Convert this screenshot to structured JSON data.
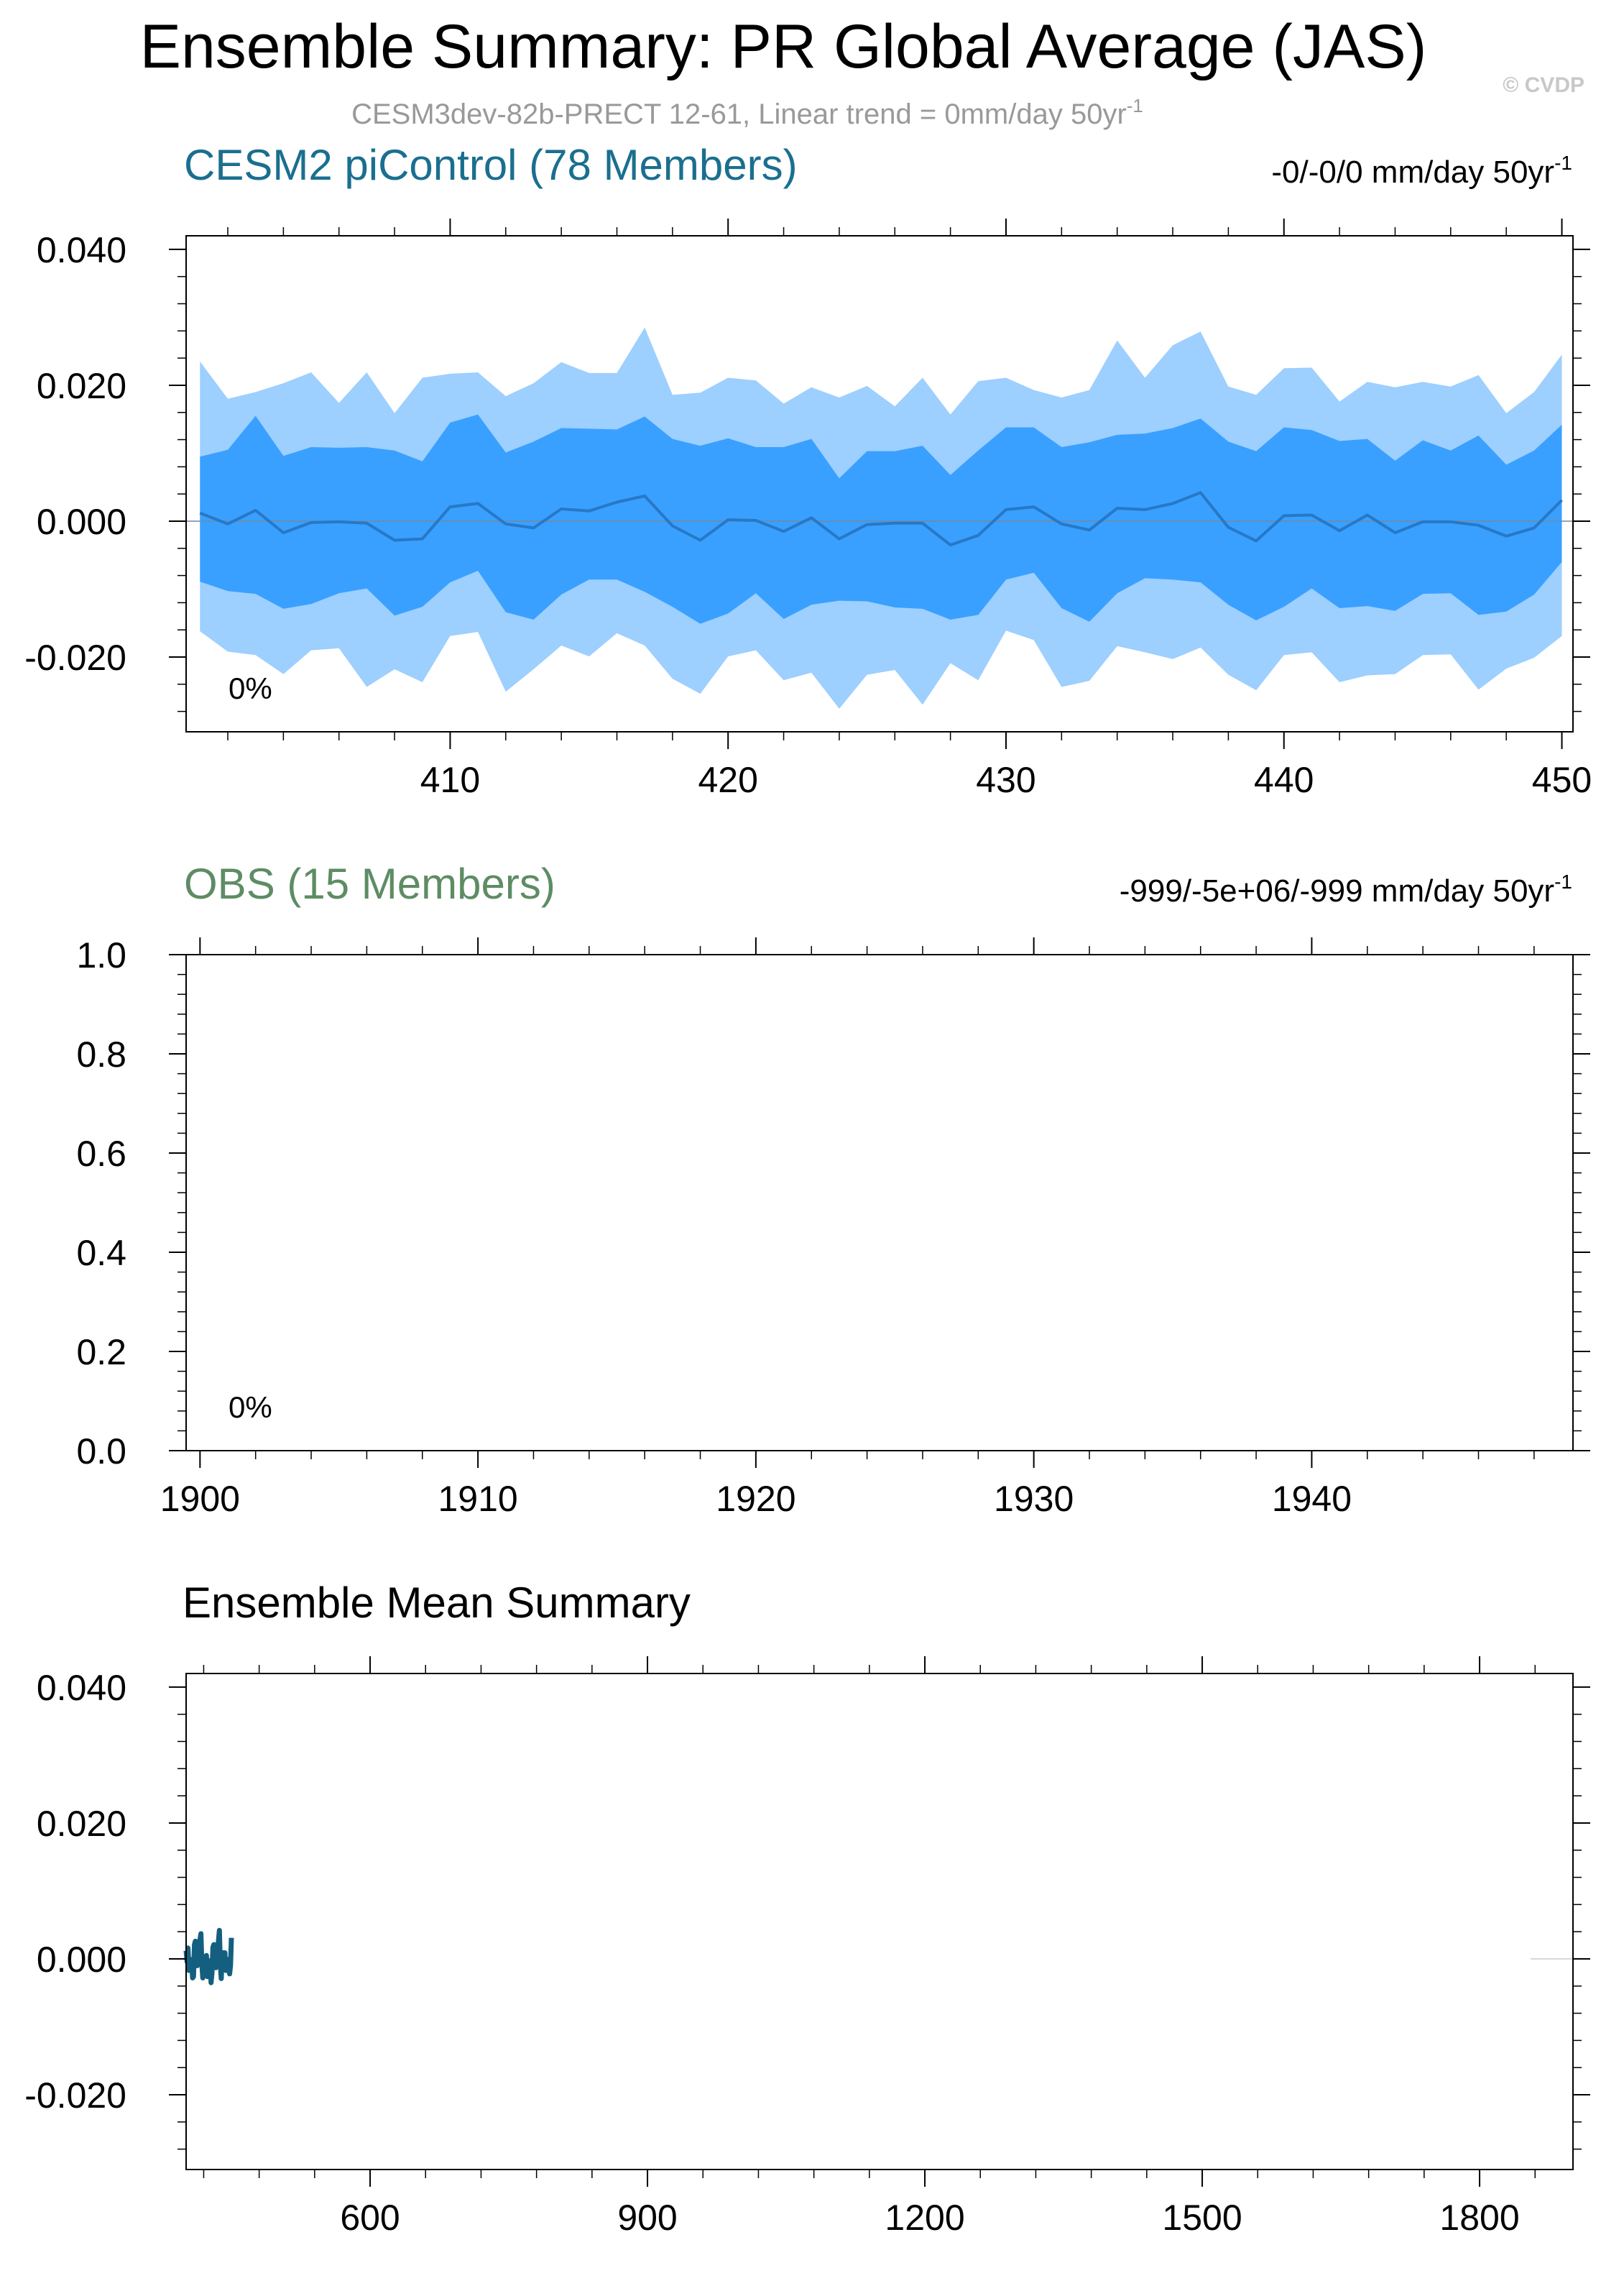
{
  "title": "Ensemble Summary: PR Global Average (JAS)",
  "copyright": "© CVDP",
  "subtitle": "CESM3dev-82b-PRECT 12-61, Linear trend = 0mm/day 50yr",
  "subtitle_sup": "-1",
  "colors": {
    "cesm_title": "#1a6f8f",
    "obs_title": "#5e8c64",
    "band_outer": "#9dcfff",
    "band_inner": "#39a0ff",
    "mean_line": "#2778c6",
    "summary_line": "#145f80",
    "axis": "#000000",
    "subtitle": "#999999"
  },
  "chart_data": [
    {
      "type": "area",
      "panel_title": "CESM2 piControl (78 Members)",
      "trend_label": "-0/-0/0 mm/day 50yr",
      "trend_sup": "-1",
      "percent_label": "0%",
      "xlim": [
        400.5,
        450.4
      ],
      "ylim": [
        -0.031,
        0.042
      ],
      "x_ticks": [
        410,
        420,
        430,
        440,
        450
      ],
      "x_tick_labels": [
        "410",
        "420",
        "430",
        "440",
        "450"
      ],
      "y_ticks": [
        0.04,
        0.02,
        0.0,
        -0.02
      ],
      "y_tick_labels": [
        "0.040",
        "0.020",
        "0.000",
        "-0.020"
      ],
      "grid": false,
      "x": [
        401,
        402,
        403,
        404,
        405,
        406,
        407,
        408,
        409,
        410,
        411,
        412,
        413,
        414,
        415,
        416,
        417,
        418,
        419,
        420,
        421,
        422,
        423,
        424,
        425,
        426,
        427,
        428,
        429,
        430,
        431,
        432,
        433,
        434,
        435,
        436,
        437,
        438,
        439,
        440,
        441,
        442,
        443,
        444,
        445,
        446,
        447,
        448,
        449,
        450
      ],
      "series": [
        {
          "role": "outer_upper",
          "values": [
            0.0235,
            0.018,
            0.019,
            0.0203,
            0.0219,
            0.0174,
            0.0219,
            0.0159,
            0.0211,
            0.0217,
            0.0219,
            0.0184,
            0.0203,
            0.0234,
            0.0218,
            0.0218,
            0.0285,
            0.0186,
            0.0189,
            0.0211,
            0.0207,
            0.0173,
            0.0197,
            0.0182,
            0.0199,
            0.0169,
            0.0211,
            0.0157,
            0.0206,
            0.0211,
            0.0193,
            0.0182,
            0.0193,
            0.0266,
            0.0211,
            0.0259,
            0.0279,
            0.0198,
            0.0186,
            0.0225,
            0.0226,
            0.0176,
            0.0205,
            0.0197,
            0.0205,
            0.0198,
            0.0215,
            0.0159,
            0.019,
            0.0245
          ]
        },
        {
          "role": "inner_upper",
          "values": [
            0.0095,
            0.0105,
            0.0155,
            0.0096,
            0.0109,
            0.0108,
            0.0109,
            0.0104,
            0.0088,
            0.0145,
            0.0157,
            0.0101,
            0.0117,
            0.0137,
            0.0136,
            0.0135,
            0.0154,
            0.0121,
            0.0111,
            0.0122,
            0.0109,
            0.0109,
            0.0121,
            0.0063,
            0.0103,
            0.0103,
            0.0111,
            0.0068,
            0.0104,
            0.0138,
            0.0138,
            0.0109,
            0.0116,
            0.0127,
            0.0129,
            0.0137,
            0.0151,
            0.0117,
            0.0103,
            0.0138,
            0.0134,
            0.0118,
            0.0121,
            0.0089,
            0.0119,
            0.0104,
            0.0126,
            0.0083,
            0.0104,
            0.0142
          ]
        },
        {
          "role": "mean",
          "values": [
            0.0012,
            -0.0004,
            0.0016,
            -0.0017,
            -0.0002,
            -0.0001,
            -0.0003,
            -0.0028,
            -0.0026,
            0.0021,
            0.0026,
            -0.0004,
            -0.001,
            0.0018,
            0.0015,
            0.0028,
            0.0037,
            -0.0007,
            -0.0028,
            0.0002,
            0.0001,
            -0.0015,
            0.0005,
            -0.0026,
            -0.0005,
            -0.0003,
            -0.0003,
            -0.0035,
            -0.0021,
            0.0017,
            0.0021,
            -0.0004,
            -0.0013,
            0.0019,
            0.0017,
            0.0026,
            0.0042,
            -0.0009,
            -0.0029,
            0.0008,
            0.0009,
            -0.0014,
            0.0009,
            -0.0017,
            -0.0001,
            -0.0001,
            -0.0006,
            -0.0022,
            -0.001,
            0.0031
          ]
        },
        {
          "role": "inner_lower",
          "values": [
            -0.0089,
            -0.0103,
            -0.0107,
            -0.0129,
            -0.0122,
            -0.0106,
            -0.0099,
            -0.0139,
            -0.0126,
            -0.009,
            -0.0073,
            -0.0134,
            -0.0145,
            -0.0108,
            -0.0086,
            -0.0086,
            -0.0104,
            -0.0126,
            -0.0151,
            -0.0136,
            -0.0106,
            -0.0144,
            -0.0123,
            -0.0117,
            -0.0118,
            -0.0127,
            -0.0129,
            -0.0145,
            -0.0138,
            -0.0086,
            -0.0076,
            -0.0128,
            -0.0148,
            -0.0106,
            -0.0084,
            -0.0086,
            -0.009,
            -0.0123,
            -0.0146,
            -0.0126,
            -0.0099,
            -0.0128,
            -0.0125,
            -0.0132,
            -0.0107,
            -0.0106,
            -0.0138,
            -0.0133,
            -0.0108,
            -0.006
          ]
        },
        {
          "role": "outer_lower",
          "values": [
            -0.0162,
            -0.0192,
            -0.0197,
            -0.0225,
            -0.019,
            -0.0187,
            -0.0244,
            -0.0218,
            -0.0237,
            -0.0169,
            -0.0163,
            -0.0251,
            -0.0218,
            -0.0183,
            -0.0199,
            -0.0165,
            -0.0183,
            -0.0232,
            -0.0254,
            -0.0199,
            -0.019,
            -0.0234,
            -0.0223,
            -0.0276,
            -0.0226,
            -0.0219,
            -0.027,
            -0.0209,
            -0.0234,
            -0.0161,
            -0.0175,
            -0.0244,
            -0.0235,
            -0.0184,
            -0.0193,
            -0.0203,
            -0.0186,
            -0.0226,
            -0.0249,
            -0.0197,
            -0.0193,
            -0.0237,
            -0.0227,
            -0.0225,
            -0.0197,
            -0.0196,
            -0.0248,
            -0.0217,
            -0.0201,
            -0.0169
          ]
        }
      ]
    },
    {
      "type": "line",
      "panel_title": "OBS (15 Members)",
      "trend_label": "-999/-5e+06/-999 mm/day 50yr",
      "trend_sup": "-1",
      "percent_label": "0%",
      "xlim": [
        1899.5,
        1949.4
      ],
      "ylim": [
        0.0,
        1.0
      ],
      "x_ticks": [
        1900,
        1910,
        1920,
        1930,
        1940
      ],
      "x_tick_labels": [
        "1900",
        "1910",
        "1920",
        "1930",
        "1940"
      ],
      "y_ticks": [
        1.0,
        0.8,
        0.6,
        0.4,
        0.2,
        0.0
      ],
      "y_tick_labels": [
        "1.0",
        "0.8",
        "0.6",
        "0.4",
        "0.2",
        "0.0"
      ],
      "grid": false,
      "series": []
    },
    {
      "type": "line",
      "panel_title": "Ensemble Mean Summary",
      "xlim": [
        401,
        1901
      ],
      "ylim": [
        -0.031,
        0.042
      ],
      "x_ticks": [
        600,
        900,
        1200,
        1500,
        1800
      ],
      "x_tick_labels": [
        "600",
        "900",
        "1200",
        "1500",
        "1800"
      ],
      "y_ticks": [
        0.04,
        0.02,
        0.0,
        -0.02
      ],
      "y_tick_labels": [
        "0.040",
        "0.020",
        "0.000",
        "-0.020"
      ],
      "grid": false,
      "series": [
        {
          "role": "ensemble_mean",
          "x": [
            401,
            402,
            403,
            404,
            405,
            406,
            407,
            408,
            409,
            410,
            411,
            412,
            413,
            414,
            415,
            416,
            417,
            418,
            419,
            420,
            421,
            422,
            423,
            424,
            425,
            426,
            427,
            428,
            429,
            430,
            431,
            432,
            433,
            434,
            435,
            436,
            437,
            438,
            439,
            440,
            441,
            442,
            443,
            444,
            445,
            446,
            447,
            448,
            449,
            450
          ],
          "values": [
            0.0012,
            -0.0004,
            0.0016,
            -0.0017,
            -0.0002,
            -0.0001,
            -0.0003,
            -0.0028,
            -0.0026,
            0.0021,
            0.0026,
            -0.0004,
            -0.001,
            0.0018,
            0.0015,
            0.0028,
            0.0037,
            -0.0007,
            -0.0028,
            0.0002,
            0.0001,
            -0.0015,
            0.0005,
            -0.0026,
            -0.0005,
            -0.0003,
            -0.0003,
            -0.0035,
            -0.0021,
            0.0017,
            0.0021,
            -0.0004,
            -0.0013,
            0.0019,
            0.0017,
            0.0026,
            0.0042,
            -0.0009,
            -0.0029,
            0.0008,
            0.0009,
            -0.0014,
            0.0009,
            -0.0017,
            -0.0001,
            -0.0001,
            -0.0006,
            -0.0022,
            -0.001,
            0.0031
          ]
        }
      ]
    }
  ]
}
